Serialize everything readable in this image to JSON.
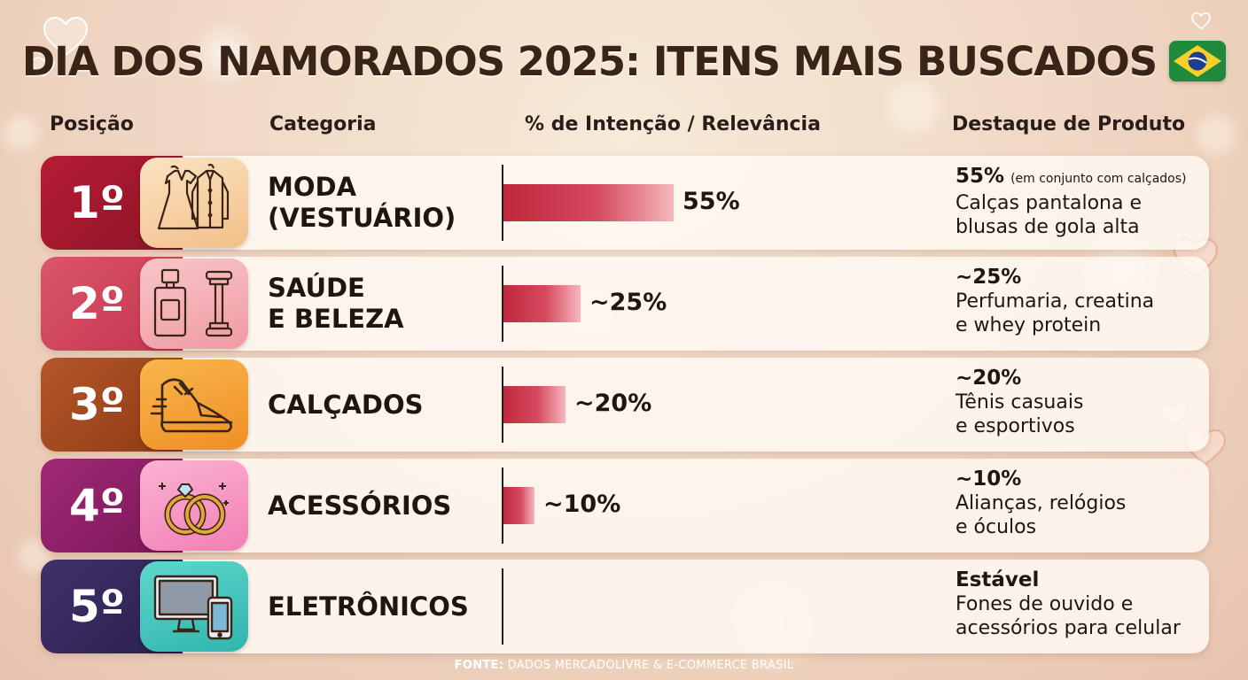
{
  "title": "DIA DOS NAMORADOS 2025: ITENS MAIS BUSCADOS",
  "headers": {
    "position": "Posição",
    "category": "Categoria",
    "intent": "% de Intenção / Relevância",
    "highlight": "Destaque de Produto"
  },
  "colors": {
    "row1": "#a3192e",
    "row2": "#d0425a",
    "row3": "#a64a1d",
    "row4": "#8e1e66",
    "row5": "#35285c",
    "bar": "#c0283e"
  },
  "rows": [
    {
      "rank": "1º",
      "icon": "clothing-icon",
      "category_line1": "MODA",
      "category_line2": "(VESTUÁRIO)",
      "value_label": "55%",
      "highlight": "55%",
      "note": "(em conjunto com calçados)",
      "desc_line1": "Calças pantalona e",
      "desc_line2": "blusas de gola alta"
    },
    {
      "rank": "2º",
      "icon": "perfume-dumbbell-icon",
      "category_line1": "SAÚDE",
      "category_line2": "E BELEZA",
      "value_label": "~25%",
      "highlight": "~25%",
      "desc_line1": "Perfumaria, creatina",
      "desc_line2": "e whey protein"
    },
    {
      "rank": "3º",
      "icon": "sneaker-icon",
      "category_line1": "CALÇADOS",
      "category_line2": "",
      "value_label": "~20%",
      "highlight": "~20%",
      "desc_line1": "Tênis casuais",
      "desc_line2": "e esportivos"
    },
    {
      "rank": "4º",
      "icon": "rings-icon",
      "category_line1": "ACESSÓRIOS",
      "category_line2": "",
      "value_label": "~10%",
      "highlight": "~10%",
      "desc_line1": "Alianças, relógios",
      "desc_line2": "e óculos"
    },
    {
      "rank": "5º",
      "icon": "computer-phone-icon",
      "category_line1": "ELETRÔNICOS",
      "category_line2": "",
      "value_label": "",
      "highlight": "Estável",
      "desc_line1": "Fones de ouvido e",
      "desc_line2": "acessórios para celular"
    }
  ],
  "source_label": "FONTE:",
  "source_text": "DADOS MERCADOLIVRE & E-COMMERCE BRASIL",
  "chart_data": {
    "type": "bar",
    "orientation": "horizontal",
    "title": "DIA DOS NAMORADOS 2025: ITENS MAIS BUSCADOS",
    "xlabel": "% de Intenção / Relevância",
    "ylabel": "Categoria",
    "categories": [
      "MODA (VESTUÁRIO)",
      "SAÚDE E BELEZA",
      "CALÇADOS",
      "ACESSÓRIOS",
      "ELETRÔNICOS"
    ],
    "values": [
      55,
      25,
      20,
      10,
      null
    ],
    "value_labels": [
      "55%",
      "~25%",
      "~20%",
      "~10%",
      ""
    ],
    "xlim": [
      0,
      100
    ],
    "grid": false
  }
}
